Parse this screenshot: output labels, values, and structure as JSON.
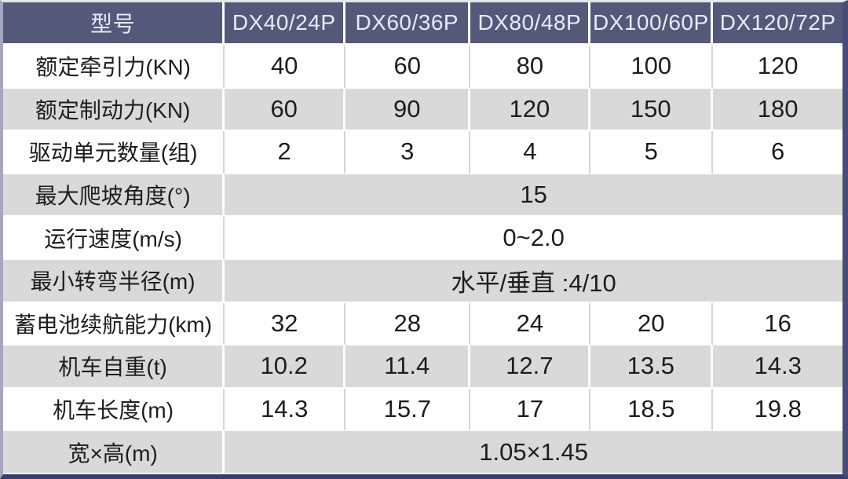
{
  "table": {
    "header": {
      "label": "型号",
      "models": [
        "DX40/24P",
        "DX60/36P",
        "DX80/48P",
        "DX100/60P",
        "DX120/72P"
      ]
    },
    "rows": [
      {
        "label": "额定牵引力(KN)",
        "values": [
          "40",
          "60",
          "80",
          "100",
          "120"
        ]
      },
      {
        "label": "额定制动力(KN)",
        "values": [
          "60",
          "90",
          "120",
          "150",
          "180"
        ]
      },
      {
        "label": "驱动单元数量(组)",
        "values": [
          "2",
          "3",
          "4",
          "5",
          "6"
        ]
      },
      {
        "label": "最大爬坡角度(°)",
        "span": "15"
      },
      {
        "label": "运行速度(m/s)",
        "span": "0~2.0"
      },
      {
        "label": "最小转弯半径(m)",
        "span": "水平/垂直 :4/10"
      },
      {
        "label": "蓄电池续航能力(km)",
        "values": [
          "32",
          "28",
          "24",
          "20",
          "16"
        ]
      },
      {
        "label": "机车自重(t)",
        "values": [
          "10.2",
          "11.4",
          "12.7",
          "13.5",
          "14.3"
        ]
      },
      {
        "label": "机车长度(m)",
        "values": [
          "14.3",
          "15.7",
          "17",
          "18.5",
          "19.8"
        ]
      },
      {
        "label": "宽×高(m)",
        "span": "1.05×1.45"
      }
    ],
    "colors": {
      "header_bg": "#545879",
      "header_text": "#e9ebf5",
      "row_gray": "#d9d9d9",
      "row_white": "#ffffff",
      "body_text": "#1d1d1d",
      "outer_border_dark": "#383d6a"
    }
  }
}
